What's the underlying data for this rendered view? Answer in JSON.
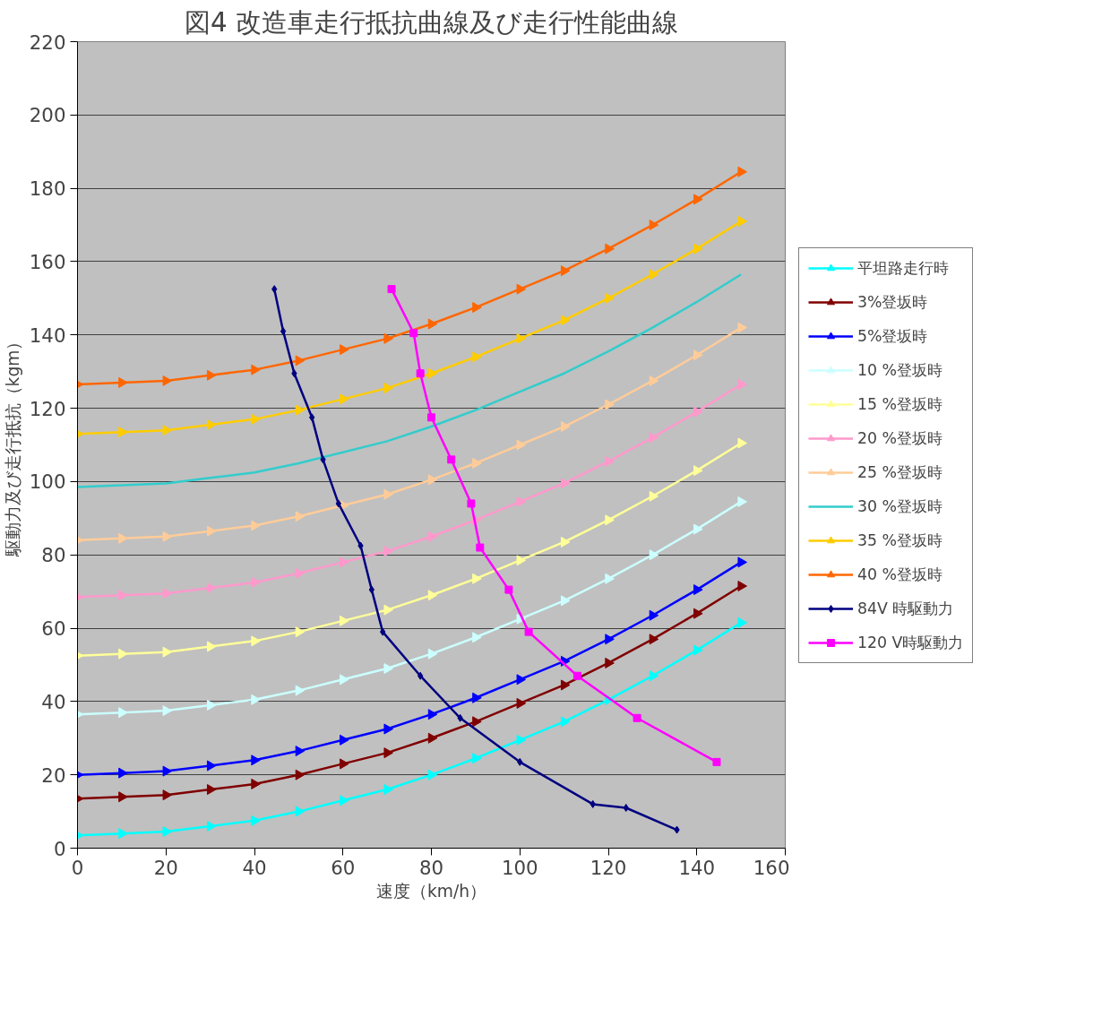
{
  "chart_data": {
    "type": "line",
    "title": "図4 改造車走行抵抗曲線及び走行性能曲線",
    "xlabel": "速度（km/h）",
    "ylabel": "駆動力及び走行抵抗（kgm）",
    "x": [
      0,
      10,
      20,
      30,
      40,
      50,
      60,
      70,
      80,
      90,
      100,
      110,
      120,
      130,
      140,
      150
    ],
    "xlim": [
      0,
      160
    ],
    "xticks": [
      0,
      20,
      40,
      60,
      80,
      100,
      120,
      140,
      160
    ],
    "ylim": [
      0,
      220
    ],
    "yticks": [
      0,
      20,
      40,
      60,
      80,
      100,
      120,
      140,
      160,
      180,
      200,
      220
    ],
    "grid": "y",
    "legend": "right",
    "series": [
      {
        "name": "平坦路走行時",
        "color": "#00ffff",
        "marker": "triangle",
        "values": [
          3.5,
          4,
          4.5,
          6,
          7.5,
          10,
          13,
          16,
          20,
          24.5,
          29.5,
          34.5,
          40.5,
          47,
          54,
          61.5
        ]
      },
      {
        "name": "3%登坂時",
        "color": "#800000",
        "marker": "triangle",
        "values": [
          13.5,
          14,
          14.5,
          16,
          17.5,
          20,
          23,
          26,
          30,
          34.5,
          39.5,
          44.5,
          50.5,
          57,
          64,
          71.5
        ]
      },
      {
        "name": "5%登坂時",
        "color": "#0000ff",
        "marker": "triangle",
        "values": [
          20,
          20.5,
          21,
          22.5,
          24,
          26.5,
          29.5,
          32.5,
          36.5,
          41,
          46,
          51,
          57,
          63.5,
          70.5,
          78
        ]
      },
      {
        "name": "10 %登坂時",
        "color": "#ccffff",
        "marker": "triangle",
        "values": [
          36.5,
          37,
          37.5,
          39,
          40.5,
          43,
          46,
          49,
          53,
          57.5,
          62.5,
          67.5,
          73.5,
          80,
          87,
          94.5
        ]
      },
      {
        "name": "15 %登坂時",
        "color": "#ffff99",
        "marker": "triangle",
        "values": [
          52.5,
          53,
          53.5,
          55,
          56.5,
          59,
          62,
          65,
          69,
          73.5,
          78.5,
          83.5,
          89.5,
          96,
          103,
          110.5
        ]
      },
      {
        "name": "20 %登坂時",
        "color": "#ff99cc",
        "marker": "triangle",
        "values": [
          68.5,
          69,
          69.5,
          71,
          72.5,
          75,
          78,
          81,
          85,
          89.5,
          94.5,
          99.5,
          105.5,
          112,
          119,
          126.5
        ]
      },
      {
        "name": "25 %登坂時",
        "color": "#ffcc99",
        "marker": "triangle",
        "values": [
          84,
          84.5,
          85,
          86.5,
          88,
          90.5,
          93.5,
          96.5,
          100.5,
          105,
          110,
          115,
          121,
          127.5,
          134.5,
          142
        ]
      },
      {
        "name": "30 %登坂時",
        "color": "#33cccc",
        "marker": "none",
        "values": [
          98.5,
          99,
          99.5,
          101,
          102.5,
          105,
          108,
          111,
          115,
          119.5,
          124.5,
          129.5,
          135.5,
          142,
          149,
          156.5
        ]
      },
      {
        "name": "35 %登坂時",
        "color": "#ffcc00",
        "marker": "triangle",
        "values": [
          113,
          113.5,
          114,
          115.5,
          117,
          119.5,
          122.5,
          125.5,
          129.5,
          134,
          139,
          144,
          150,
          156.5,
          163.5,
          171
        ]
      },
      {
        "name": "40 %登坂時",
        "color": "#ff6600",
        "marker": "triangle",
        "values": [
          126.5,
          127,
          127.5,
          129,
          130.5,
          133,
          136,
          139,
          143,
          147.5,
          152.5,
          157.5,
          163.5,
          170,
          177,
          184.5
        ]
      },
      {
        "name": "84V 時駆動力",
        "color": "#000080",
        "marker": "diamond",
        "x": [
          44.5,
          46.5,
          49,
          53,
          55.5,
          59,
          64,
          66.5,
          69,
          77.5,
          86.5,
          100,
          116.5,
          124,
          135.5
        ],
        "values": [
          152.5,
          141,
          129.5,
          117.5,
          106,
          94,
          82.5,
          70.5,
          59,
          47,
          35.5,
          23.5,
          12,
          11,
          5
        ]
      },
      {
        "name": "120 V時駆動力",
        "color": "#ff00ff",
        "marker": "square",
        "x": [
          71,
          76,
          77.5,
          80,
          84.5,
          89,
          91,
          97.5,
          102,
          113,
          126.5,
          144.5
        ],
        "values": [
          152.5,
          140.5,
          129.5,
          117.5,
          106,
          94,
          82,
          70.5,
          59,
          47,
          35.5,
          23.5
        ]
      }
    ]
  }
}
